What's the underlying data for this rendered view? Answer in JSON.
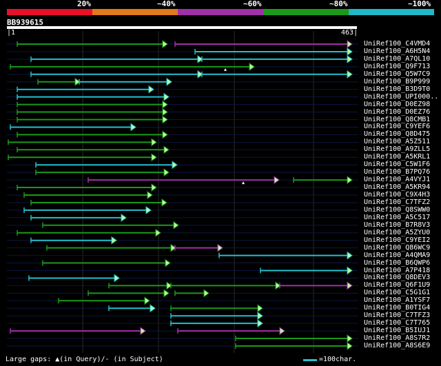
{
  "legend": {
    "labels": [
      "20%",
      "~40%",
      "~60%",
      "~80%",
      "~100%"
    ],
    "colors": [
      "#e8102a",
      "#e07a1a",
      "#a030a8",
      "#1a9a1a",
      "#20b8c8"
    ]
  },
  "query": {
    "name": "BB939615",
    "start": "1",
    "end": "463"
  },
  "hits": [
    {
      "label": "UniRef100_C4VMD4"
    },
    {
      "label": "UniRef100_A6H5N4"
    },
    {
      "label": "UniRef100_A7QL10"
    },
    {
      "label": "UniRef100_Q9F713"
    },
    {
      "label": "UniRef100_Q5W7C9"
    },
    {
      "label": "UniRef100_B9P999"
    },
    {
      "label": "UniRef100_B3D9T0"
    },
    {
      "label": "UniRef100_UPI000.."
    },
    {
      "label": "UniRef100_D0EZ98"
    },
    {
      "label": "UniRef100_D0EZ76"
    },
    {
      "label": "UniRef100_Q8CMB1"
    },
    {
      "label": "UniRef100_C9YEF6"
    },
    {
      "label": "UniRef100_Q8D475"
    },
    {
      "label": "UniRef100_A5Z511"
    },
    {
      "label": "UniRef100_A9ZLL5"
    },
    {
      "label": "UniRef100_A5KRL1"
    },
    {
      "label": "UniRef100_C5W1F6"
    },
    {
      "label": "UniRef100_B7PQ76"
    },
    {
      "label": "UniRef100_A4VYJ1"
    },
    {
      "label": "UniRef100_A5KR94"
    },
    {
      "label": "UniRef100_C9X4H3"
    },
    {
      "label": "UniRef100_C7TFZ2"
    },
    {
      "label": "UniRef100_Q8SWW0"
    },
    {
      "label": "UniRef100_A5C517"
    },
    {
      "label": "UniRef100_B7R8V3"
    },
    {
      "label": "UniRef100_A5ZYU0"
    },
    {
      "label": "UniRef100_C9YEI2"
    },
    {
      "label": "UniRef100_Q86WC9"
    },
    {
      "label": "UniRef100_A4QMA9"
    },
    {
      "label": "UniRef100_B6QWP6"
    },
    {
      "label": "UniRef100_A7P418"
    },
    {
      "label": "UniRef100_Q8DEV3"
    },
    {
      "label": "UniRef100_Q6F1U9"
    },
    {
      "label": "UniRef100_C5G1G1"
    },
    {
      "label": "UniRef100_A1YSF7"
    },
    {
      "label": "UniRef100_B0TIG4"
    },
    {
      "label": "UniRef100_C7TFZ3"
    },
    {
      "label": "UniRef100_C7T765"
    },
    {
      "label": "UniRef100_B5IUJ1"
    },
    {
      "label": "UniRef100_A8S7R2"
    },
    {
      "label": "UniRef100_A8S6E9"
    }
  ],
  "footer": {
    "text": "Large gaps: ▲(in Query)/- (in Subject)",
    "scale_text": "=100char."
  }
}
